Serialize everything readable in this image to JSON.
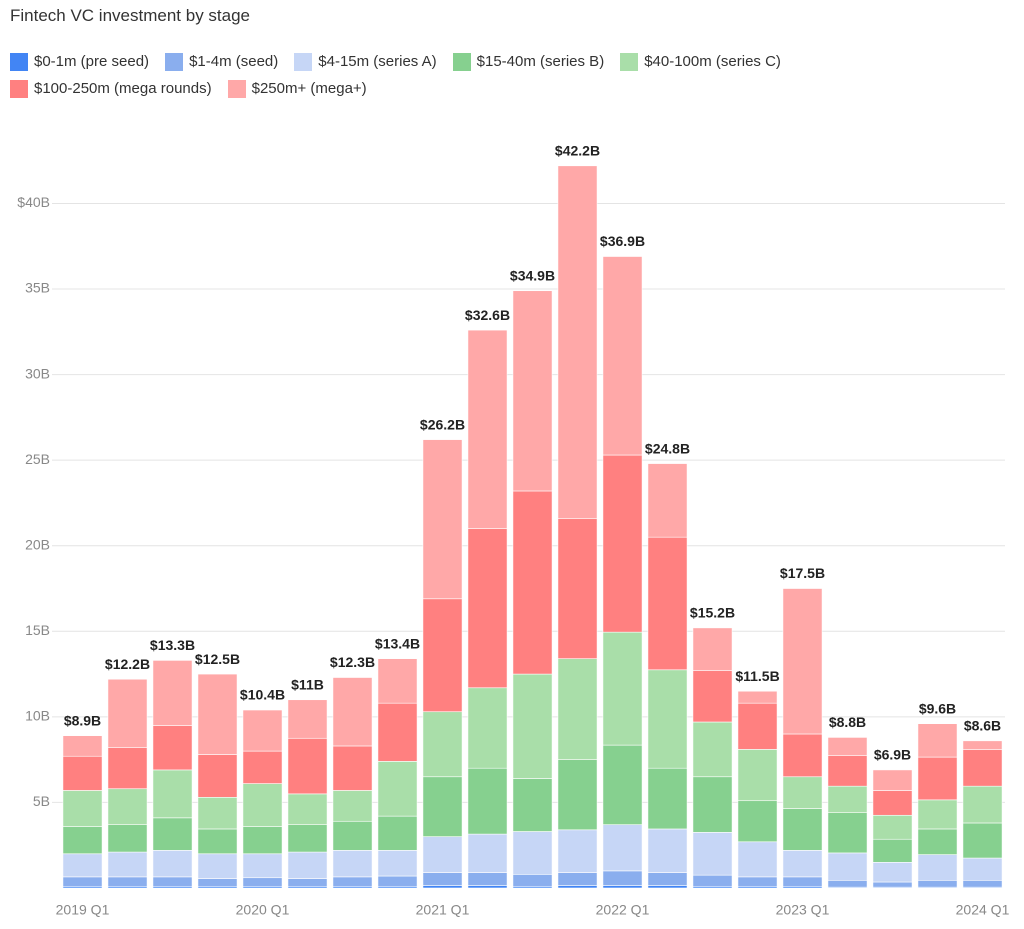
{
  "chart_data": {
    "type": "stacked-bar",
    "title": "Fintech VC investment by stage",
    "categories": [
      "2019 Q1",
      null,
      null,
      null,
      "2020 Q1",
      null,
      null,
      null,
      "2021 Q1",
      null,
      null,
      null,
      "2022 Q1",
      null,
      null,
      null,
      "2023 Q1",
      null,
      null,
      null,
      "2024 Q1"
    ],
    "ylim": [
      0,
      44
    ],
    "yticks": [
      {
        "value": 5,
        "label": "5B"
      },
      {
        "value": 10,
        "label": "10B"
      },
      {
        "value": 15,
        "label": "15B"
      },
      {
        "value": 20,
        "label": "20B"
      },
      {
        "value": 25,
        "label": "25B"
      },
      {
        "value": 30,
        "label": "30B"
      },
      {
        "value": 35,
        "label": "35B"
      },
      {
        "value": 40,
        "label": "$40B"
      }
    ],
    "grid": true,
    "series": [
      {
        "name": "$0-1m (pre seed)",
        "color": "#4285f4",
        "values": [
          0.1,
          0.1,
          0.1,
          0.1,
          0.1,
          0.1,
          0.1,
          0.1,
          0.15,
          0.15,
          0.1,
          0.15,
          0.15,
          0.15,
          0.1,
          0.1,
          0.1,
          0.05,
          0.05,
          0.05,
          0.05
        ]
      },
      {
        "name": "$1-4m (seed)",
        "color": "#8aaeee",
        "values": [
          0.55,
          0.55,
          0.55,
          0.45,
          0.5,
          0.45,
          0.55,
          0.6,
          0.75,
          0.75,
          0.7,
          0.75,
          0.85,
          0.75,
          0.65,
          0.55,
          0.55,
          0.4,
          0.3,
          0.4,
          0.4
        ]
      },
      {
        "name": "$4-15m (series A)",
        "color": "#c6d6f6",
        "values": [
          1.35,
          1.45,
          1.55,
          1.45,
          1.4,
          1.55,
          1.55,
          1.5,
          2.1,
          2.25,
          2.5,
          2.5,
          2.7,
          2.55,
          2.5,
          2.05,
          1.55,
          1.6,
          1.15,
          1.5,
          1.3
        ]
      },
      {
        "name": "$15-40m (series B)",
        "color": "#86d08f",
        "values": [
          1.6,
          1.6,
          1.9,
          1.45,
          1.6,
          1.6,
          1.7,
          2.0,
          3.5,
          3.85,
          3.1,
          4.1,
          4.65,
          3.55,
          3.25,
          2.4,
          2.45,
          2.35,
          1.35,
          1.5,
          2.05
        ]
      },
      {
        "name": "$40-100m (series C)",
        "color": "#a9dea9",
        "values": [
          2.1,
          2.1,
          2.8,
          1.85,
          2.5,
          1.8,
          1.8,
          3.2,
          3.8,
          4.7,
          6.1,
          5.9,
          6.6,
          5.75,
          3.2,
          3.0,
          1.85,
          1.55,
          1.4,
          1.7,
          2.15
        ]
      },
      {
        "name": "$100-250m (mega rounds)",
        "color": "#ff8080",
        "values": [
          2.0,
          2.4,
          2.6,
          2.5,
          1.9,
          3.25,
          2.6,
          3.4,
          6.6,
          9.3,
          10.7,
          8.2,
          10.35,
          7.75,
          3.0,
          2.7,
          2.5,
          1.8,
          1.45,
          2.5,
          2.15
        ]
      },
      {
        "name": "$250m+ (mega+)",
        "color": "#ffa8a8",
        "values": [
          1.2,
          4.0,
          3.8,
          4.7,
          2.4,
          2.25,
          4.0,
          2.6,
          9.3,
          11.6,
          11.7,
          20.6,
          11.6,
          4.3,
          2.5,
          0.7,
          8.5,
          1.05,
          1.2,
          1.95,
          0.5
        ]
      }
    ],
    "totals": {
      "values": [
        8.9,
        12.2,
        13.3,
        12.5,
        10.4,
        11,
        12.3,
        13.4,
        26.2,
        32.6,
        34.9,
        42.2,
        36.9,
        24.8,
        15.2,
        11.5,
        17.5,
        8.8,
        6.9,
        9.6,
        8.6
      ],
      "value_labels": [
        "$8.9B",
        "$12.2B",
        "$13.3B",
        "$12.5B",
        "$10.4B",
        "$11B",
        "$12.3B",
        "$13.4B",
        "$26.2B",
        "$32.6B",
        "$34.9B",
        "$42.2B",
        "$36.9B",
        "$24.8B",
        "$15.2B",
        "$11.5B",
        "$17.5B",
        "$8.8B",
        "$6.9B",
        "$9.6B",
        "$8.6B"
      ]
    }
  }
}
